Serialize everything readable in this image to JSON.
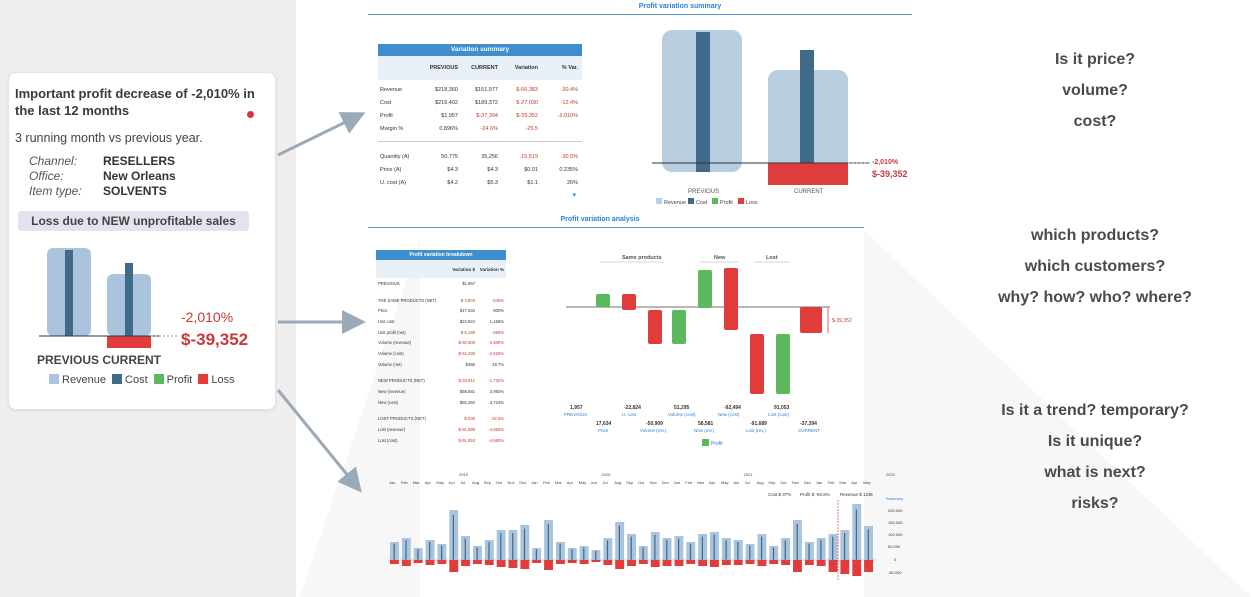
{
  "left_card": {
    "headline": "Important profit decrease of -2,010% in the last 12 months",
    "subtitle": "3 running month vs previous year.",
    "attributes": [
      {
        "label": "Channel:",
        "value": "RESELLERS"
      },
      {
        "label": "Office:",
        "value": "New Orleans"
      },
      {
        "label": "Item type:",
        "value": "SOLVENTS"
      }
    ],
    "loss_badge": "Loss due to NEW unprofitable sales",
    "pct": "-2,010%",
    "amount": "$-39,352",
    "x_labels": "PREVIOUS CURRENT",
    "legend": [
      "Revenue",
      "Cost",
      "Profit",
      "Loss"
    ]
  },
  "colors": {
    "revenue": "#a9c4dc",
    "cost": "#3f6a8a",
    "profit": "#5cb85c",
    "loss": "#e03c3c",
    "accent": "#2a82d9",
    "table_header": "#3e8ed0"
  },
  "summary_section": {
    "title": "Profit variation summary",
    "table_title": "Variation summary",
    "columns": [
      "",
      "PREVIOUS",
      "CURRENT",
      "Variation",
      "% Var."
    ],
    "rows": [
      [
        "Revenue",
        "$218,360",
        "$151,977",
        "$-66,383",
        "-30.4%"
      ],
      [
        "Cost",
        "$216,402",
        "$189,372",
        "$-27,030",
        "-12.4%"
      ],
      [
        "Profit",
        "$1,957",
        "$-37,394",
        "$-39,352",
        "-2,010%"
      ],
      [
        "Margin %",
        "0.896%",
        "-24.6%",
        "-25.5",
        ""
      ]
    ],
    "rows2": [
      [
        "Quantity (A)",
        "50,775",
        "35,256",
        "-15,519",
        "-30.5%"
      ],
      [
        "Price (A)",
        "$4.3",
        "$4.3",
        "$0.01",
        "0.235%"
      ],
      [
        "U. cost (A)",
        "$4.2",
        "$5.3",
        "$1.1",
        "26%"
      ]
    ],
    "chart_pct": "-2,010%",
    "chart_amount": "$-39,352",
    "chart_labels": [
      "PREVIOUS",
      "CURRENT"
    ],
    "legend": [
      "Revenue",
      "Cost",
      "Profit",
      "Loss"
    ]
  },
  "analysis_section": {
    "title": "Profit variation analysis",
    "table_title": "Profit variation breakdown",
    "columns": [
      "",
      "Variation $",
      "Variation %"
    ],
    "previous_row": [
      "PREVIOUS",
      "$1,957",
      ""
    ],
    "groups": [
      [
        [
          "THE SAME PRODUCTS (NET)",
          "$-4,803",
          "-245%"
        ],
        [
          "Price",
          "$17,634",
          "900%"
        ],
        [
          "Unit cost",
          "$22,824",
          "1,165%"
        ],
        [
          "Unit profit (net)",
          "$-5,189",
          "-265%"
        ],
        [
          "Volume (revenue)",
          "$-50,909",
          "-2,600%"
        ],
        [
          "Volume (cost)",
          "$-51,295",
          "-2,620%"
        ],
        [
          "Volume (net)",
          "$386",
          "19.7%"
        ]
      ],
      [
        [
          "NEW PRODUCTS (NET)",
          "$-33,912",
          "-1,732%"
        ],
        [
          "New (revenue)",
          "$58,581",
          "2,992%"
        ],
        [
          "New (cost)",
          "$92,494",
          "4,724%"
        ]
      ],
      [
        [
          "LOST PRODUCTS (NET)",
          "$-636",
          "-32.5%"
        ],
        [
          "Lost (revenue)",
          "$-91,689",
          "-4,683%"
        ],
        [
          "Lost (cost)",
          "$-91,053",
          "-4,650%"
        ]
      ]
    ],
    "waterfall_headers": [
      "Same products",
      "New",
      "Lost"
    ],
    "waterfall_top": [
      "1,957",
      "-22,824",
      "51,295",
      "-92,494",
      "91,053"
    ],
    "waterfall_top_sub": [
      "PREVIOUS",
      "U. cost",
      "Volume (cost)",
      "New (cost)",
      "Lost (cost)"
    ],
    "waterfall_bottom": [
      "17,634",
      "-50,909",
      "58,581",
      "-91,689",
      "-37,394"
    ],
    "waterfall_bottom_sub": [
      "Price",
      "Volume (rev.)",
      "New (rev.)",
      "Lost (rev.)",
      "CURRENT"
    ],
    "waterfall_side": "$-39,352",
    "waterfall_legend": "Profit"
  },
  "timeline": {
    "years": [
      "2019",
      "2020",
      "2021",
      "2022"
    ],
    "months": [
      "Jan",
      "Feb",
      "Mar",
      "Apr",
      "May",
      "Jun",
      "Jul",
      "Aug",
      "Sep",
      "Oct",
      "Nov",
      "Dec",
      "Jan",
      "Feb",
      "Mar",
      "Apr",
      "May",
      "Jun",
      "Jul",
      "Aug",
      "Sep",
      "Oct",
      "Nov",
      "Dec",
      "Jan",
      "Feb",
      "Mar",
      "Apr",
      "May",
      "Jun",
      "Jul",
      "Aug",
      "Sep",
      "Oct",
      "Nov",
      "Dec",
      "Jan",
      "Feb",
      "Mar",
      "Apr",
      "May"
    ],
    "annotations": [
      "Cost $ 37%",
      "Profit $ -50.8%",
      "Revenue $ 123k"
    ],
    "summary_label": "Summary",
    "y_ticks": [
      "200,000",
      "150,000",
      "100,000",
      "50,000",
      "0",
      "-50,000"
    ]
  },
  "questions": {
    "group1": [
      "Is it price?",
      "volume?",
      "cost?"
    ],
    "group2": [
      "which products?",
      "which customers?",
      "why? how? who? where?"
    ],
    "group3": [
      "Is it a trend? temporary?",
      "Is it unique?",
      "what is next?",
      "risks?"
    ]
  }
}
